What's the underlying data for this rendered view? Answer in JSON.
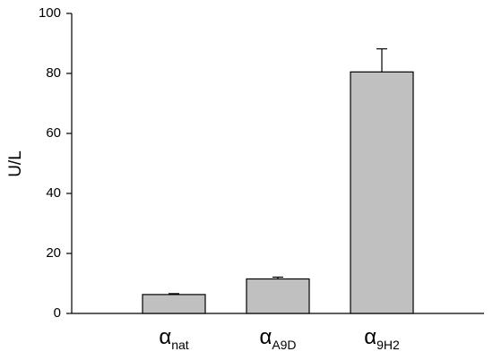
{
  "chart_data": {
    "type": "bar",
    "y_label": "U/L",
    "categories": [
      {
        "label": "α",
        "subscript": "nat"
      },
      {
        "label": "α",
        "subscript": "A9D"
      },
      {
        "label": "α",
        "subscript": "9H2"
      }
    ],
    "values": [
      6.3,
      11.5,
      80.5
    ],
    "errors": [
      0.3,
      0.6,
      7.7
    ],
    "color": "#c0c0c0",
    "ylim": [
      0,
      100
    ],
    "yticks": [
      0,
      20,
      40,
      60,
      80,
      100
    ]
  }
}
